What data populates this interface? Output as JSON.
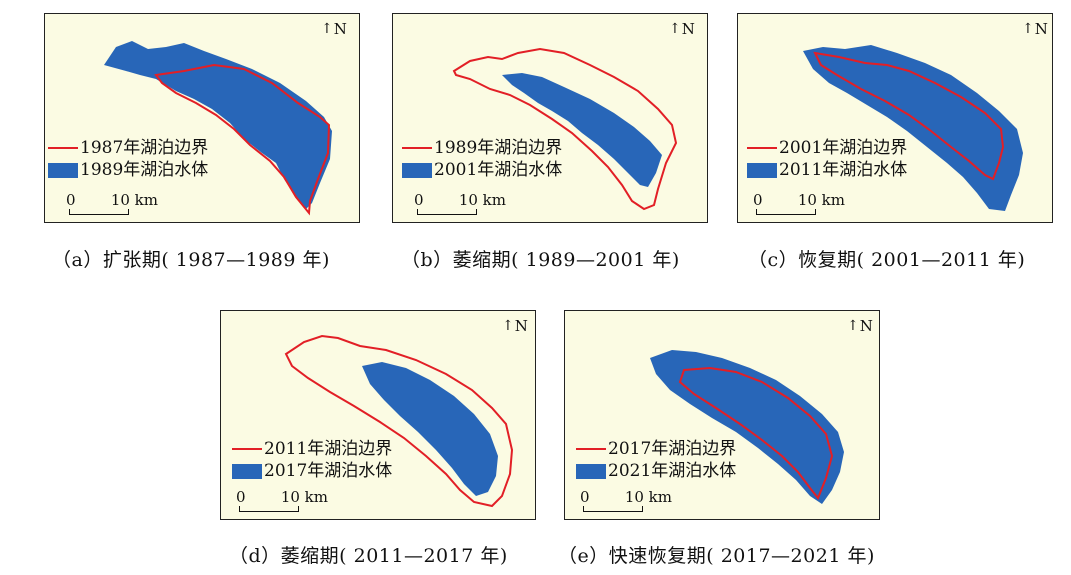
{
  "north_label": "N",
  "north_arrow_icon": "north-arrow-icon",
  "scale_zero": "0",
  "scale_value": "10 km",
  "colors": {
    "boundary": "#e21f26",
    "water": "#2866b8",
    "background": "#fbfbe3"
  },
  "panels": [
    {
      "id": "a",
      "legend_boundary": "1987年湖泊边界",
      "legend_water": "1989年湖泊水体",
      "caption": "（a）扩张期( 1987—1989 年)"
    },
    {
      "id": "b",
      "legend_boundary": "1989年湖泊边界",
      "legend_water": "2001年湖泊水体",
      "caption": "（b）萎缩期( 1989—2001 年)"
    },
    {
      "id": "c",
      "legend_boundary": "2001年湖泊边界",
      "legend_water": "2011年湖泊水体",
      "caption": "（c）恢复期( 2001—2011 年)"
    },
    {
      "id": "d",
      "legend_boundary": "2011年湖泊边界",
      "legend_water": "2017年湖泊水体",
      "caption": "（d）萎缩期( 2011—2017 年)"
    },
    {
      "id": "e",
      "legend_boundary": "2017年湖泊边界",
      "legend_water": "2021年湖泊水体",
      "caption": "（e）快速恢复期( 2017—2021 年)"
    }
  ]
}
